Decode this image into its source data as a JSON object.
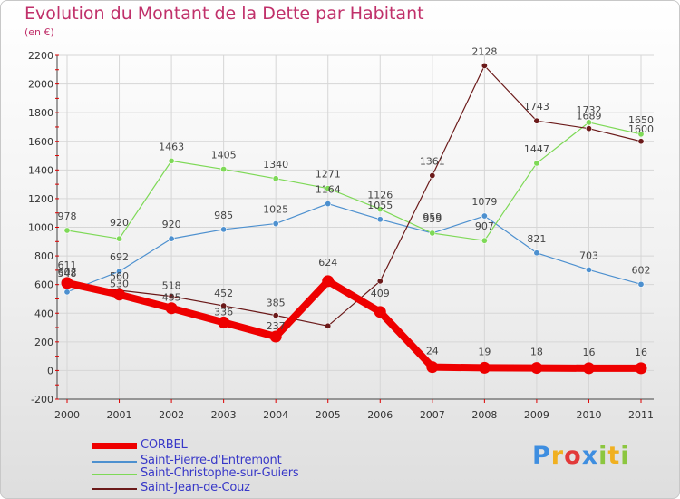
{
  "chart_data": {
    "type": "line",
    "title": "Evolution du Montant de la Dette par Habitant",
    "subtitle": "(en €)",
    "categories": [
      "2000",
      "2001",
      "2002",
      "2003",
      "2004",
      "2005",
      "2006",
      "2007",
      "2008",
      "2009",
      "2010",
      "2011"
    ],
    "ylim": [
      -200,
      2200
    ],
    "yticks": [
      -200,
      0,
      200,
      400,
      600,
      800,
      1000,
      1200,
      1400,
      1600,
      1800,
      2000,
      2200
    ],
    "series": [
      {
        "name": "CORBEL",
        "color": "#ee0000",
        "values": [
          611,
          530,
          435,
          336,
          237,
          624,
          409,
          24,
          19,
          18,
          16,
          16
        ],
        "labels_shown": [
          true,
          true,
          true,
          true,
          true,
          true,
          true,
          true,
          true,
          true,
          true,
          true
        ]
      },
      {
        "name": "Saint-Pierre-d'Entremont",
        "color": "#4d90cf",
        "values": [
          548,
          692,
          920,
          985,
          1025,
          1164,
          1055,
          959,
          1079,
          821,
          703,
          602
        ],
        "labels_shown": [
          true,
          true,
          true,
          true,
          true,
          true,
          true,
          true,
          true,
          true,
          true,
          true
        ]
      },
      {
        "name": "Saint-Christophe-sur-Guiers",
        "color": "#7ed957",
        "values": [
          978,
          920,
          1463,
          1405,
          1340,
          1271,
          1126,
          959,
          907,
          1447,
          1732,
          1650
        ],
        "labels_shown": [
          true,
          true,
          true,
          true,
          true,
          true,
          true,
          true,
          true,
          true,
          true,
          true
        ]
      },
      {
        "name": "Saint-Jean-de-Couz",
        "color": "#6b1a1a",
        "values": [
          602,
          560,
          518,
          452,
          385,
          311,
          624,
          1361,
          2128,
          1743,
          1689,
          1600
        ],
        "labels_shown": [
          true,
          true,
          true,
          true,
          true,
          false,
          false,
          true,
          true,
          true,
          true,
          true
        ]
      }
    ]
  },
  "legend": {
    "items": [
      "CORBEL",
      "Saint-Pierre-d'Entremont",
      "Saint-Christophe-sur-Guiers",
      "Saint-Jean-de-Couz"
    ]
  },
  "brand": {
    "letters": [
      "P",
      "r",
      "o",
      "x",
      "i",
      "t",
      "i"
    ],
    "colors": [
      "#3e8ee0",
      "#f0b020",
      "#e23a3a",
      "#3e8ee0",
      "#8cc63f",
      "#f0b020",
      "#8cc63f"
    ]
  }
}
